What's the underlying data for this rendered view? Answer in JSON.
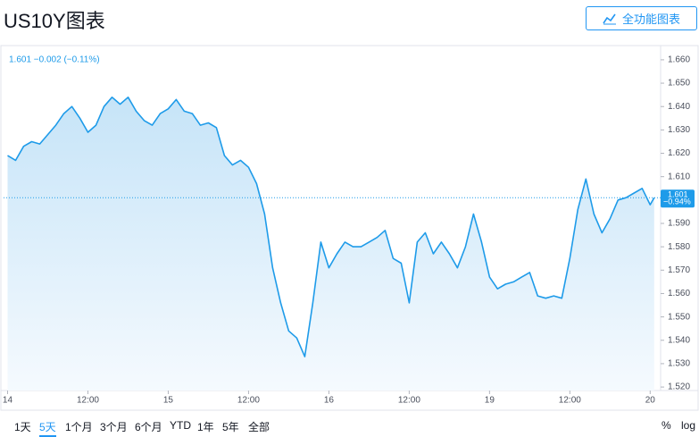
{
  "header": {
    "title": "US10Y图表",
    "button": "全功能图表"
  },
  "chart_data": {
    "type": "area",
    "legend_text": "1.601 −0.002 (−0.11%)",
    "last_price": 1.601,
    "last_change_label": "−0.94%",
    "color": "#1e9be9",
    "x": [
      0,
      0.1,
      0.2,
      0.3,
      0.4,
      0.5,
      0.6,
      0.7,
      0.8,
      0.9,
      1,
      1.1,
      1.2,
      1.3,
      1.4,
      1.5,
      1.6,
      1.7,
      1.8,
      1.9,
      2,
      2.1,
      2.2,
      2.3,
      2.4,
      2.5,
      2.6,
      2.7,
      2.8,
      2.9,
      3,
      3.1,
      3.2,
      3.3,
      3.4,
      3.5,
      3.6,
      3.7,
      3.8,
      3.9,
      4,
      4.1,
      4.2,
      4.3,
      4.4,
      4.5,
      4.6,
      4.7,
      4.8,
      4.9,
      5,
      5.1,
      5.2,
      5.3,
      5.4,
      5.5,
      5.6,
      5.7,
      5.8,
      5.9,
      6,
      6.1,
      6.2,
      6.3,
      6.4,
      6.5,
      6.6,
      6.7,
      6.8,
      6.9,
      7,
      7.1,
      7.2,
      7.3,
      7.4,
      7.5,
      7.6,
      7.7,
      7.8,
      7.9,
      8,
      8.05
    ],
    "values": [
      1.619,
      1.617,
      1.623,
      1.625,
      1.624,
      1.628,
      1.632,
      1.637,
      1.64,
      1.635,
      1.629,
      1.632,
      1.64,
      1.644,
      1.641,
      1.644,
      1.638,
      1.634,
      1.632,
      1.637,
      1.639,
      1.643,
      1.638,
      1.637,
      1.632,
      1.633,
      1.631,
      1.619,
      1.615,
      1.617,
      1.614,
      1.607,
      1.594,
      1.571,
      1.556,
      1.544,
      1.541,
      1.533,
      1.556,
      1.582,
      1.571,
      1.577,
      1.582,
      1.58,
      1.58,
      1.582,
      1.584,
      1.587,
      1.575,
      1.573,
      1.556,
      1.582,
      1.586,
      1.577,
      1.582,
      1.577,
      1.571,
      1.58,
      1.594,
      1.582,
      1.567,
      1.562,
      1.564,
      1.565,
      1.567,
      1.569,
      1.559,
      1.558,
      1.559,
      1.558,
      1.575,
      1.596,
      1.609,
      1.594,
      1.586,
      1.592,
      1.6,
      1.601,
      1.603,
      1.605,
      1.598,
      1.601
    ],
    "xlim": [
      -0.05,
      8.13
    ],
    "ylim": [
      1.5185,
      1.6657
    ],
    "xticks": [
      {
        "value": 0,
        "label": "14"
      },
      {
        "value": 1,
        "label": "12:00"
      },
      {
        "value": 2,
        "label": "15"
      },
      {
        "value": 3,
        "label": "12:00"
      },
      {
        "value": 4,
        "label": "16"
      },
      {
        "value": 5,
        "label": "12:00"
      },
      {
        "value": 6,
        "label": "19"
      },
      {
        "value": 7,
        "label": "12:00"
      },
      {
        "value": 8,
        "label": "20"
      }
    ],
    "yticks": [
      {
        "value": 1.52,
        "label": "1.520"
      },
      {
        "value": 1.53,
        "label": "1.530"
      },
      {
        "value": 1.54,
        "label": "1.540"
      },
      {
        "value": 1.55,
        "label": "1.550"
      },
      {
        "value": 1.56,
        "label": "1.560"
      },
      {
        "value": 1.57,
        "label": "1.570"
      },
      {
        "value": 1.58,
        "label": "1.580"
      },
      {
        "value": 1.59,
        "label": "1.590"
      },
      {
        "value": 1.6,
        "label": "1.600"
      },
      {
        "value": 1.61,
        "label": "1.610"
      },
      {
        "value": 1.62,
        "label": "1.620"
      },
      {
        "value": 1.63,
        "label": "1.630"
      },
      {
        "value": 1.64,
        "label": "1.640"
      },
      {
        "value": 1.65,
        "label": "1.650"
      },
      {
        "value": 1.66,
        "label": "1.660"
      }
    ]
  },
  "toolbar": {
    "ranges": [
      "1天",
      "5天",
      "1个月",
      "3个月",
      "6个月",
      "YTD",
      "1年",
      "5年",
      "全部"
    ],
    "selected": 1,
    "scale_options": [
      "%",
      "log"
    ]
  }
}
